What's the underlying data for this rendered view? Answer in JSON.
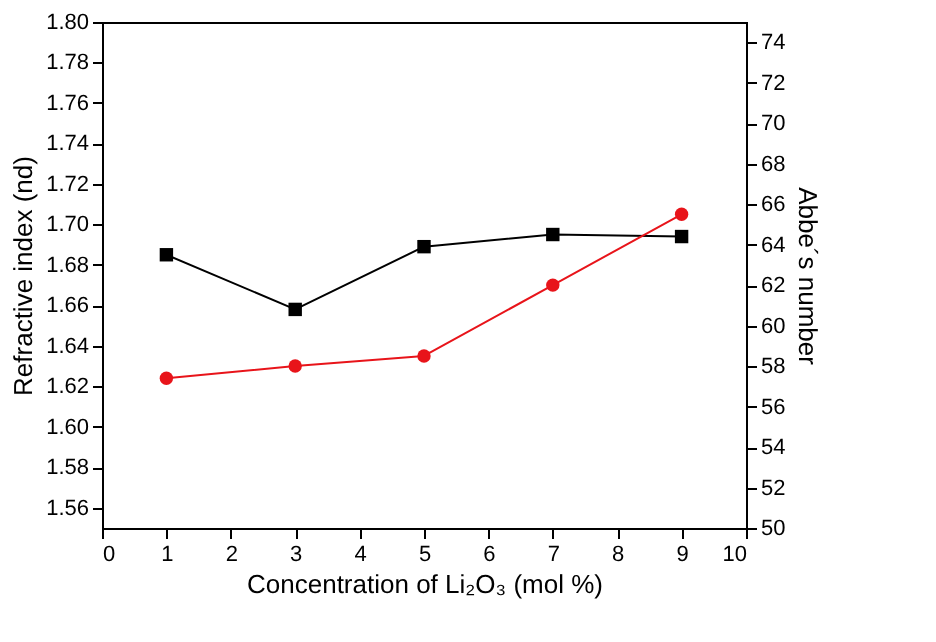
{
  "chart_data": {
    "type": "line",
    "xlabel": "Concentration of Li₂O₃ (mol %)",
    "ylabel": "Refractive index (nd)",
    "y2label": "Abbe´s number",
    "x": [
      1,
      3,
      5,
      7,
      9
    ],
    "series": [
      {
        "color": "#000000",
        "marker": "square",
        "values": [
          1.685,
          1.658,
          1.689,
          1.695,
          1.694
        ]
      },
      {
        "color": "#e8141a",
        "marker": "circle",
        "axis": "y2",
        "values": [
          57.4,
          58.0,
          58.5,
          62.0,
          65.5
        ]
      }
    ],
    "xlim": [
      0,
      10
    ],
    "xticks": [
      0,
      1,
      2,
      3,
      4,
      5,
      6,
      7,
      8,
      9,
      10
    ],
    "ylim": [
      1.55,
      1.8
    ],
    "yticks": [
      1.56,
      1.58,
      {
        "value": 1.6,
        "label": "1.60"
      },
      1.62,
      1.64,
      1.66,
      1.68,
      {
        "value": 1.7,
        "label": "1.70"
      },
      1.72,
      1.74,
      1.76,
      1.78,
      {
        "value": 1.8,
        "label": "1.80"
      }
    ],
    "y2lim": [
      50,
      75
    ],
    "y2ticks": [
      50,
      52,
      54,
      56,
      58,
      60,
      62,
      64,
      66,
      68,
      70,
      72,
      74
    ],
    "grid": false
  }
}
